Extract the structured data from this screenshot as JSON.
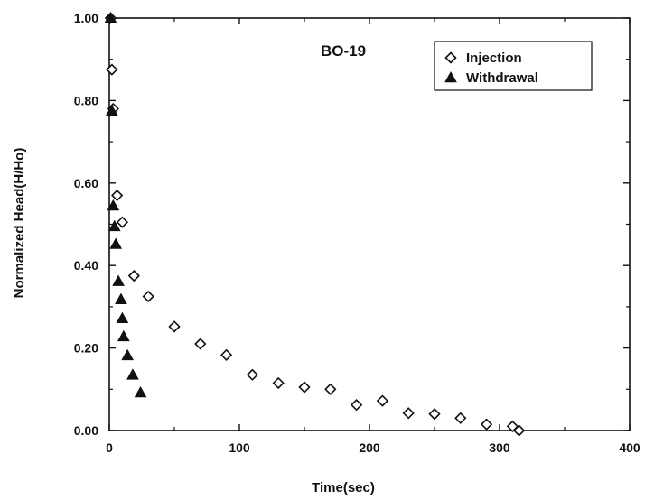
{
  "chart_data": {
    "type": "scatter",
    "title": "BO-19",
    "xlabel": "Time(sec)",
    "ylabel": "Normalized Head(H/Ho)",
    "xlim": [
      0,
      400
    ],
    "ylim": [
      0,
      1.0
    ],
    "xticks": [
      0,
      100,
      200,
      300,
      400
    ],
    "xtick_labels": [
      "0",
      "100",
      "200",
      "300",
      "400"
    ],
    "yticks": [
      0,
      0.2,
      0.4,
      0.6,
      0.8,
      1.0
    ],
    "ytick_labels": [
      "0.00",
      "0.20",
      "0.40",
      "0.60",
      "0.80",
      "1.00"
    ],
    "grid": false,
    "legend_position": "top-right",
    "series": [
      {
        "name": "Injection",
        "marker": "diamond-open",
        "color": "#111111",
        "points": [
          [
            1,
            1.0
          ],
          [
            2,
            0.875
          ],
          [
            3,
            0.78
          ],
          [
            6,
            0.57
          ],
          [
            10,
            0.505
          ],
          [
            19,
            0.375
          ],
          [
            30,
            0.325
          ],
          [
            50,
            0.252
          ],
          [
            70,
            0.21
          ],
          [
            90,
            0.183
          ],
          [
            110,
            0.135
          ],
          [
            130,
            0.115
          ],
          [
            150,
            0.105
          ],
          [
            170,
            0.1
          ],
          [
            190,
            0.062
          ],
          [
            210,
            0.072
          ],
          [
            230,
            0.042
          ],
          [
            250,
            0.04
          ],
          [
            270,
            0.03
          ],
          [
            290,
            0.015
          ],
          [
            310,
            0.01
          ],
          [
            315,
            0.0
          ]
        ]
      },
      {
        "name": "Withdrawal",
        "marker": "triangle-filled",
        "color": "#111111",
        "points": [
          [
            1,
            1.0
          ],
          [
            2,
            0.775
          ],
          [
            3,
            0.545
          ],
          [
            4,
            0.495
          ],
          [
            5,
            0.452
          ],
          [
            7,
            0.362
          ],
          [
            9,
            0.318
          ],
          [
            10,
            0.272
          ],
          [
            11,
            0.228
          ],
          [
            14,
            0.182
          ],
          [
            18,
            0.135
          ],
          [
            24,
            0.092
          ]
        ]
      }
    ]
  }
}
